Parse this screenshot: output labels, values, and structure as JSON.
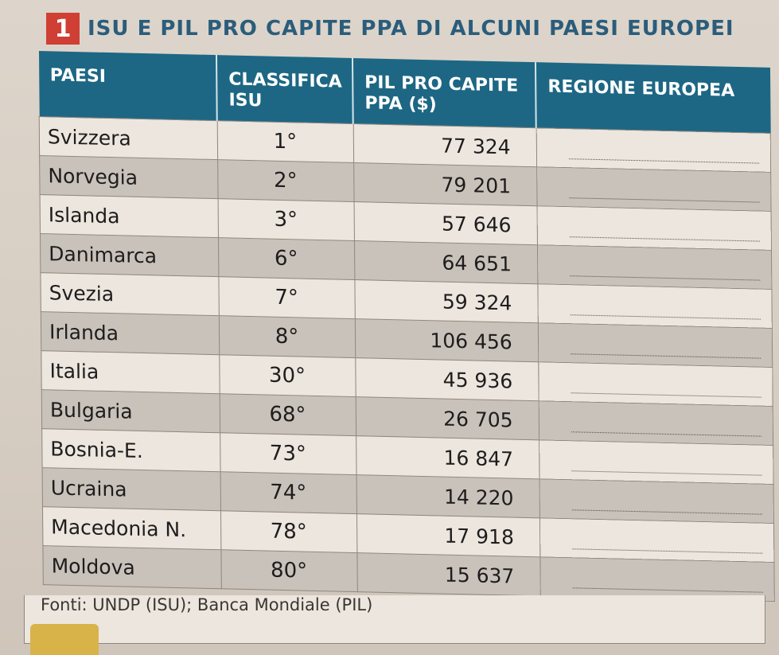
{
  "header": {
    "number": "1",
    "title": "ISU E PIL PRO CAPITE PPA DI ALCUNI PAESI EUROPEI"
  },
  "table": {
    "columns": [
      "PAESI",
      "CLASSIFICA ISU",
      "PIL PRO CAPITE PPA ($)",
      "REGIONE EUROPEA"
    ],
    "rows": [
      {
        "country": "Svizzera",
        "rank": "1°",
        "gdp": "77 324"
      },
      {
        "country": "Norvegia",
        "rank": "2°",
        "gdp": "79 201"
      },
      {
        "country": "Islanda",
        "rank": "3°",
        "gdp": "57 646"
      },
      {
        "country": "Danimarca",
        "rank": "6°",
        "gdp": "64 651"
      },
      {
        "country": "Svezia",
        "rank": "7°",
        "gdp": "59 324"
      },
      {
        "country": "Irlanda",
        "rank": "8°",
        "gdp": "106 456"
      },
      {
        "country": "Italia",
        "rank": "30°",
        "gdp": "45 936"
      },
      {
        "country": "Bulgaria",
        "rank": "68°",
        "gdp": "26 705"
      },
      {
        "country": "Bosnia-E.",
        "rank": "73°",
        "gdp": "16 847"
      },
      {
        "country": "Ucraina",
        "rank": "74°",
        "gdp": "14 220"
      },
      {
        "country": "Macedonia N.",
        "rank": "78°",
        "gdp": "17 918"
      },
      {
        "country": "Moldova",
        "rank": "80°",
        "gdp": "15 637"
      }
    ]
  },
  "footer": {
    "source": "Fonti: UNDP (ISU); Banca Mondiale (PIL)"
  },
  "colors": {
    "header_bg": "#1d6784",
    "title": "#2b5d7b",
    "badge": "#cf3f34"
  }
}
